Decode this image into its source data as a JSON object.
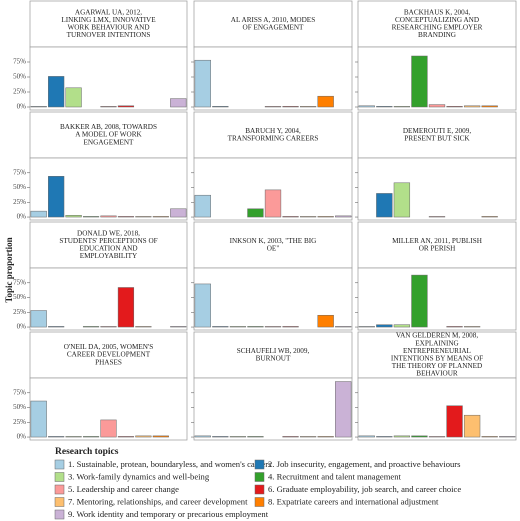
{
  "chart_data": {
    "type": "bar",
    "ylabel": "Topic proportion",
    "legend_title": "Research topics",
    "categories": [
      "1. Sustainable, protean, boundaryless, and women's careers",
      "2. Job insecurity, engagement, and proactive behaviours",
      "3. Work-family dynamics and well-being",
      "4. Recruitment and talent management",
      "5. Leadership and career change",
      "6. Graduate employability, job search, and career choice",
      "7. Mentoring, relationships, and career development",
      "8. Expatriate careers and international adjustment",
      "9. Work identity and temporary or precarious employment"
    ],
    "colors": [
      "#a6cee3",
      "#1f78b4",
      "#b2df8a",
      "#33a02c",
      "#fb9a99",
      "#e31a1c",
      "#fdbf6f",
      "#ff7f00",
      "#cab2d6"
    ],
    "ylim": [
      -5,
      100
    ],
    "yticks": [
      {
        "value": 0,
        "label": "0%"
      },
      {
        "value": 25,
        "label": "25%"
      },
      {
        "value": 50,
        "label": "50%"
      },
      {
        "value": 75,
        "label": "75%"
      }
    ],
    "panels": [
      {
        "title": [
          "AGARWAL UA, 2012,",
          "LINKING LMX, INNOVATIVE",
          "WORK BEHAVIOUR AND",
          "TURNOVER INTENTIONS"
        ],
        "values": [
          1,
          51,
          32,
          0,
          1,
          2,
          0,
          0,
          14
        ]
      },
      {
        "title": [
          "AL ARISS A, 2010, MODES",
          "OF ENGAGEMENT"
        ],
        "values": [
          78,
          1,
          0,
          0,
          1,
          1,
          1,
          18,
          0
        ]
      },
      {
        "title": [
          "BACKHAUS K, 2004,",
          "CONCEPTUALIZING AND",
          "RESEARCHING EMPLOYER",
          "BRANDING"
        ],
        "values": [
          2,
          1,
          1,
          85,
          4,
          1,
          2,
          2,
          0
        ]
      },
      {
        "title": [
          "BAKKER AB, 2008, TOWARDS",
          "A MODEL OF WORK",
          "ENGAGEMENT"
        ],
        "values": [
          10,
          69,
          3,
          1,
          2,
          1,
          1,
          1,
          14
        ]
      },
      {
        "title": [
          "BARUCH Y, 2004,",
          "TRANSFORMING CAREERS"
        ],
        "values": [
          37,
          0,
          0,
          14,
          46,
          1,
          1,
          1,
          2
        ]
      },
      {
        "title": [
          "DEMEROUTI E, 2009,",
          "PRESENT BUT SICK"
        ],
        "values": [
          0,
          40,
          58,
          0,
          1,
          0,
          0,
          1,
          0
        ]
      },
      {
        "title": [
          "DONALD WE, 2018,",
          "STUDENTS' PERCEPTIONS OF",
          "EDUCATION AND",
          "EMPLOYABILITY"
        ],
        "values": [
          28,
          1,
          0,
          1,
          1,
          67,
          1,
          0,
          1
        ]
      },
      {
        "title": [
          "INKSON K, 2003, \"THE BIG",
          "OE\""
        ],
        "values": [
          73,
          1,
          1,
          1,
          1,
          1,
          0,
          20,
          1
        ]
      },
      {
        "title": [
          "MILLER AN, 2011, PUBLISH",
          "OR PERISH"
        ],
        "values": [
          1,
          4,
          4,
          88,
          0,
          1,
          1,
          0,
          0
        ]
      },
      {
        "title": [
          "O'NEIL DA, 2005, WOMEN'S",
          "CAREER DEVELOPMENT",
          "PHASES"
        ],
        "values": [
          61,
          1,
          1,
          1,
          29,
          1,
          2,
          2,
          0
        ]
      },
      {
        "title": [
          "SCHAUFELI WB, 2009,",
          "BURNOUT"
        ],
        "values": [
          2,
          1,
          1,
          1,
          0,
          1,
          1,
          1,
          94
        ]
      },
      {
        "title": [
          "VAN GELDEREN M, 2008,",
          "EXPLAINING",
          "ENTREPRENEURIAL",
          "INTENTIONS BY MEANS OF",
          "THE THEORY OF PLANNED",
          "BEHAVIOUR"
        ],
        "values": [
          2,
          1,
          2,
          2,
          1,
          53,
          37,
          1,
          1
        ]
      }
    ]
  }
}
